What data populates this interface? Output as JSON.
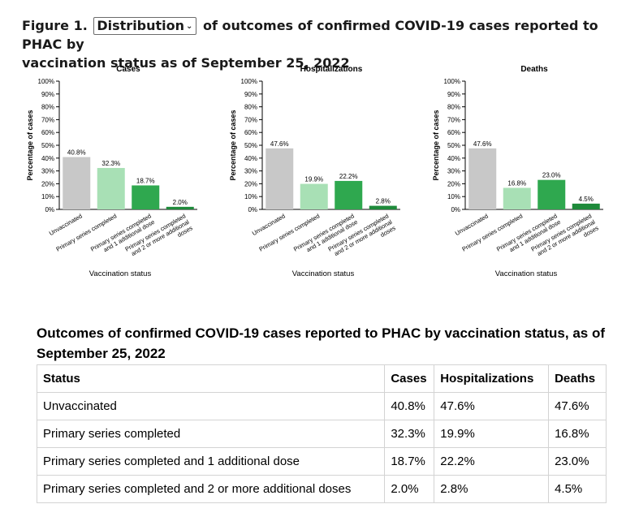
{
  "figure": {
    "prefix": "Figure 1.",
    "dropdown_value": "Distribution",
    "title_rest_1": "of outcomes of confirmed COVID-19 cases reported to PHAC by",
    "title_rest_2": "vaccination status as of September 25, 2022"
  },
  "chart_data": [
    {
      "type": "bar",
      "title": "Cases",
      "xlabel": "Vaccination status",
      "ylabel": "Percentage of cases",
      "ylim": [
        0,
        100
      ],
      "yticks": [
        "0%",
        "10%",
        "20%",
        "30%",
        "40%",
        "50%",
        "60%",
        "70%",
        "80%",
        "90%",
        "100%"
      ],
      "categories": [
        "Unvaccinated",
        "Primary series completed",
        "Primary series completed and 1 additional dose",
        "Primary series completed and 2 or more additional doses"
      ],
      "values": [
        40.8,
        32.3,
        18.7,
        2.0
      ],
      "data_labels": [
        "40.8%",
        "32.3%",
        "18.7%",
        "2.0%"
      ],
      "colors": [
        "#c8c8c8",
        "#a8e0b5",
        "#2fa84f",
        "#1e8a3a"
      ]
    },
    {
      "type": "bar",
      "title": "Hospitalizations",
      "xlabel": "Vaccination status",
      "ylabel": "Percentage of cases",
      "ylim": [
        0,
        100
      ],
      "yticks": [
        "0%",
        "10%",
        "20%",
        "30%",
        "40%",
        "50%",
        "60%",
        "70%",
        "80%",
        "90%",
        "100%"
      ],
      "categories": [
        "Unvaccinated",
        "Primary series completed",
        "Primary series completed and 1 additional dose",
        "Primary series completed and 2 or more additional doses"
      ],
      "values": [
        47.6,
        19.9,
        22.2,
        2.8
      ],
      "data_labels": [
        "47.6%",
        "19.9%",
        "22.2%",
        "2.8%"
      ],
      "colors": [
        "#c8c8c8",
        "#a8e0b5",
        "#2fa84f",
        "#1e8a3a"
      ]
    },
    {
      "type": "bar",
      "title": "Deaths",
      "xlabel": "Vaccination status",
      "ylabel": "Percentage of cases",
      "ylim": [
        0,
        100
      ],
      "yticks": [
        "0%",
        "10%",
        "20%",
        "30%",
        "40%",
        "50%",
        "60%",
        "70%",
        "80%",
        "90%",
        "100%"
      ],
      "categories": [
        "Unvaccinated",
        "Primary series completed",
        "Primary series completed and 1 additional dose",
        "Primary series completed and 2 or more additional doses"
      ],
      "values": [
        47.6,
        16.8,
        23.0,
        4.5
      ],
      "data_labels": [
        "47.6%",
        "16.8%",
        "23.0%",
        "4.5%"
      ],
      "colors": [
        "#c8c8c8",
        "#a8e0b5",
        "#2fa84f",
        "#1e8a3a"
      ]
    }
  ],
  "category_label_lines": [
    [
      "Unvaccinated"
    ],
    [
      "Primary series completed"
    ],
    [
      "Primary series completed",
      "and 1 additional dose"
    ],
    [
      "Primary series completed",
      "and 2 or more additional",
      "doses"
    ]
  ],
  "table": {
    "title": "Outcomes of confirmed COVID-19 cases reported to PHAC by vaccination status, as of September 25, 2022",
    "headers": [
      "Status",
      "Cases",
      "Hospitalizations",
      "Deaths"
    ],
    "rows": [
      [
        "Unvaccinated",
        "40.8%",
        "47.6%",
        "47.6%"
      ],
      [
        "Primary series completed",
        "32.3%",
        "19.9%",
        "16.8%"
      ],
      [
        "Primary series completed and 1 additional dose",
        "18.7%",
        "22.2%",
        "23.0%"
      ],
      [
        "Primary series completed and 2 or more additional doses",
        "2.0%",
        "2.8%",
        "4.5%"
      ]
    ]
  }
}
